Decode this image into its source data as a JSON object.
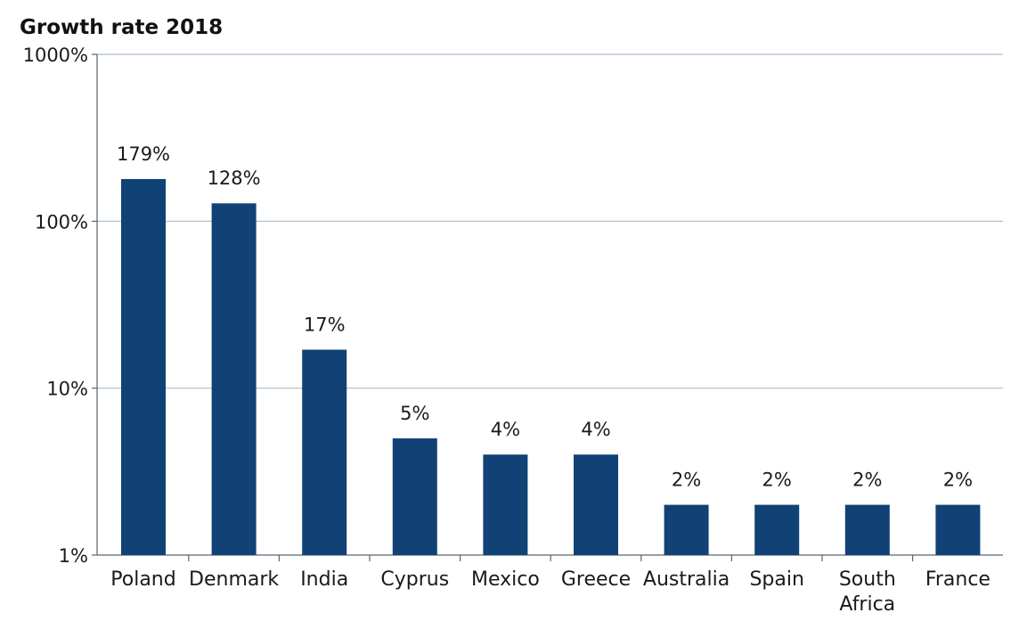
{
  "chart_data": {
    "type": "bar",
    "title": "Growth rate 2018",
    "xlabel": "",
    "ylabel": "",
    "yscale": "log",
    "ylim": [
      1,
      1000
    ],
    "yticks": [
      1,
      10,
      100,
      1000
    ],
    "ytick_labels": [
      "1%",
      "10%",
      "100%",
      "1000%"
    ],
    "grid": true,
    "categories": [
      [
        "Poland"
      ],
      [
        "Denmark"
      ],
      [
        "India"
      ],
      [
        "Cyprus"
      ],
      [
        "Mexico"
      ],
      [
        "Greece"
      ],
      [
        "Australia"
      ],
      [
        "Spain"
      ],
      [
        "South",
        "Africa"
      ],
      [
        "France"
      ]
    ],
    "values": [
      179,
      128,
      17,
      5,
      4,
      4,
      2,
      2,
      2,
      2
    ],
    "data_labels": [
      "179%",
      "128%",
      "17%",
      "5%",
      "4%",
      "4%",
      "2%",
      "2%",
      "2%",
      "2%"
    ],
    "colors": {
      "bar": "#104275",
      "grid": "#a9bccf",
      "axis": "#5a6670",
      "text": "#1a1a1a"
    }
  }
}
